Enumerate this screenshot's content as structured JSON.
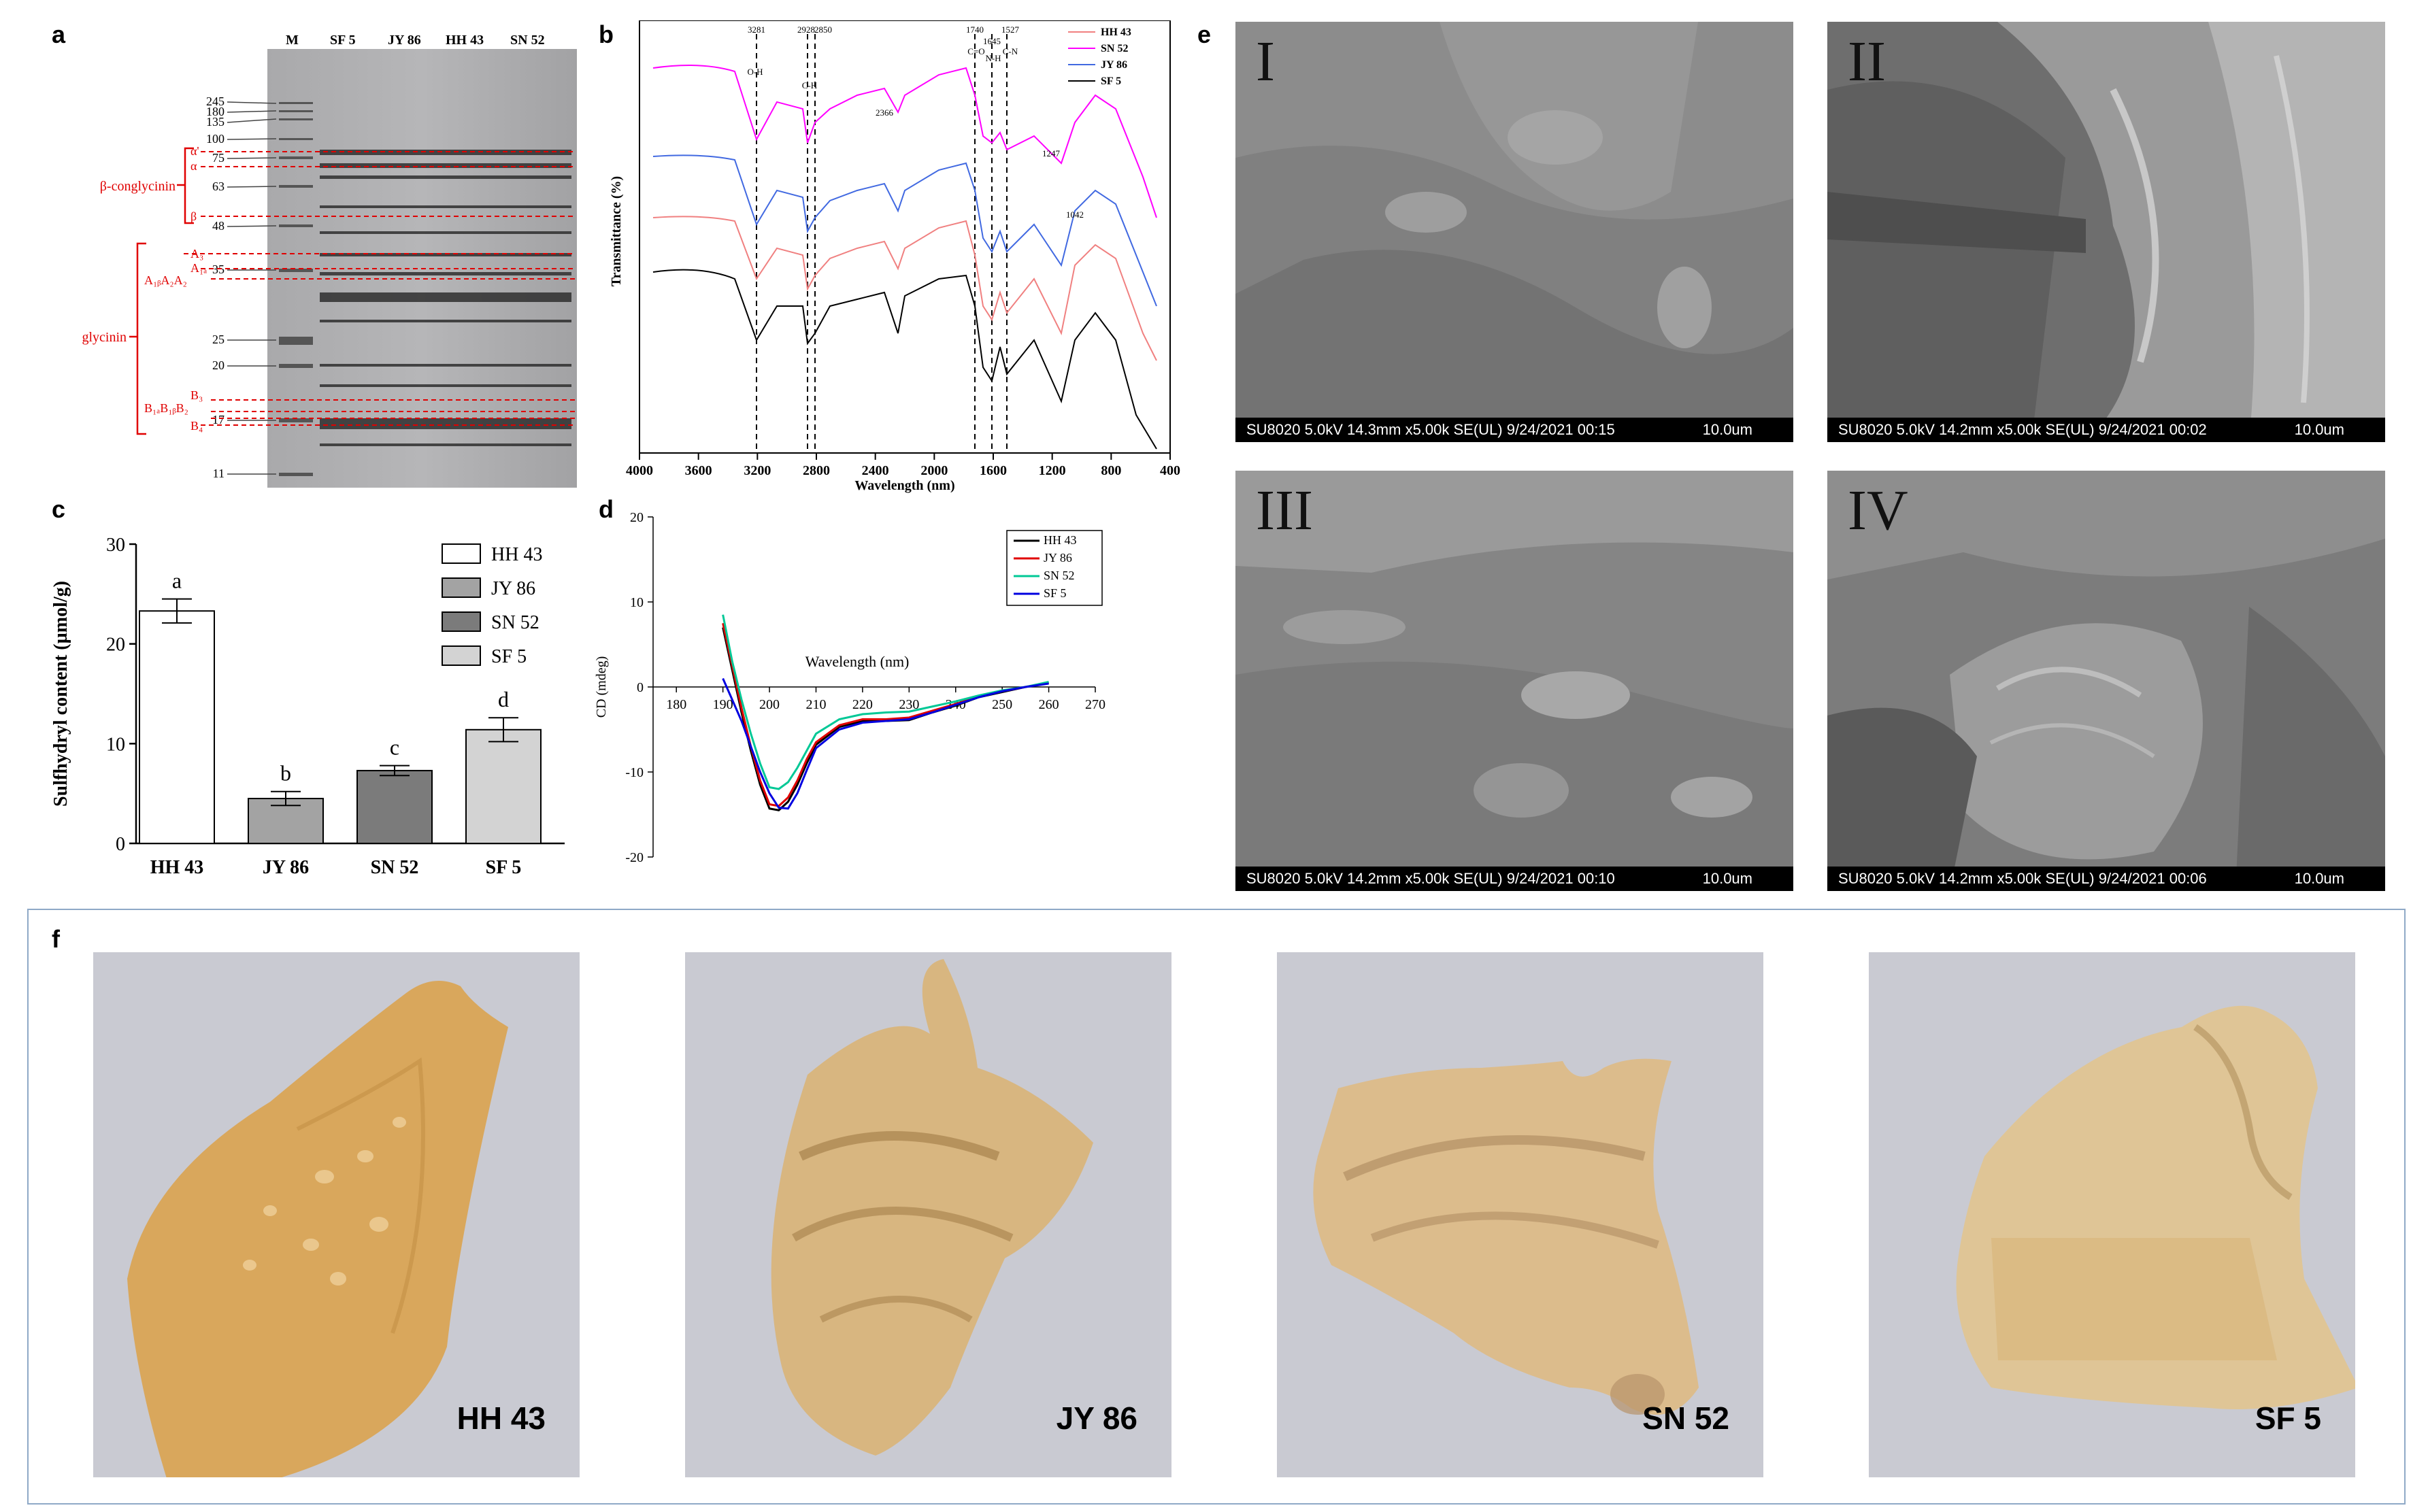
{
  "panels": {
    "a": "a",
    "b": "b",
    "c": "c",
    "d": "d",
    "e": "e",
    "f": "f"
  },
  "panel_a": {
    "lane_labels": [
      "M",
      "SF 5",
      "JY 86",
      "HH 43",
      "SN 52"
    ],
    "marker_labels": [
      "245",
      "180",
      "135",
      "100",
      "75",
      "63",
      "48",
      "35",
      "25",
      "20",
      "17",
      "11"
    ],
    "band_labels": [
      "α'",
      "α",
      "β",
      "A₃",
      "A₁ₐ",
      "A₁ᵦA₂A₂",
      "B₃",
      "B₁ₐB₁ᵦB₂",
      "B₄"
    ],
    "group_labels": [
      "β-conglycinin",
      "glycinin"
    ]
  },
  "panel_b": {
    "ylabel": "Transmittance (%)",
    "xlabel": "Wavelength (nm)",
    "x_ticks": [
      "4000",
      "3600",
      "3200",
      "2800",
      "2400",
      "2000",
      "1600",
      "1200",
      "800",
      "400"
    ],
    "peak_labels": [
      "3281",
      "2928",
      "2850",
      "1740",
      "1527",
      "2366",
      "1247",
      "1042",
      "1645"
    ],
    "bond_labels": [
      "O-H",
      "C-H",
      "C=O",
      "C-N",
      "N-H"
    ],
    "legend": [
      {
        "name": "HH 43",
        "color": "#f08080"
      },
      {
        "name": "SN 52",
        "color": "#ff00ff"
      },
      {
        "name": "JY 86",
        "color": "#4169e1"
      },
      {
        "name": "SF 5",
        "color": "#000000"
      }
    ]
  },
  "chart_data": [
    {
      "type": "bar",
      "panel": "c",
      "categories": [
        "HH 43",
        "JY 86",
        "SN 52",
        "SF 5"
      ],
      "values": [
        23.3,
        4.5,
        7.3,
        11.4
      ],
      "errors": [
        1.2,
        0.7,
        0.5,
        1.2
      ],
      "significance": [
        "a",
        "b",
        "c",
        "d"
      ],
      "colors": [
        "#ffffff",
        "#a3a3a3",
        "#7b7b7b",
        "#d3d3d3"
      ],
      "ylabel": "Sulfhydryl content (µmol/g)",
      "ylim": [
        0,
        30
      ],
      "y_ticks": [
        "0",
        "10",
        "20",
        "30"
      ],
      "legend": [
        "HH 43",
        "JY 86",
        "SN 52",
        "SF 5"
      ]
    },
    {
      "type": "line",
      "panel": "d",
      "xlabel": "Wavelength (nm)",
      "ylabel": "CD (mdeg)",
      "xlim": [
        175,
        270
      ],
      "ylim": [
        -20,
        20
      ],
      "x_ticks": [
        "180",
        "190",
        "200",
        "210",
        "220",
        "230",
        "240",
        "250",
        "260",
        "270"
      ],
      "y_ticks": [
        "20",
        "10",
        "0",
        "-10",
        "-20"
      ],
      "series": [
        {
          "name": "HH 43",
          "color": "#000000",
          "x": [
            190,
            192,
            194,
            196,
            198,
            200,
            202,
            204,
            206,
            208,
            210,
            215,
            220,
            225,
            230,
            235,
            240,
            245,
            250,
            255,
            260
          ],
          "y": [
            7,
            2,
            -3,
            -7.5,
            -11.5,
            -14.3,
            -14.5,
            -13.5,
            -11.5,
            -9,
            -6.8,
            -4.7,
            -4,
            -4,
            -3.9,
            -3,
            -2.2,
            -1.2,
            -0.6,
            0,
            0.5
          ]
        },
        {
          "name": "JY 86",
          "color": "#e00000",
          "x": [
            190,
            192,
            194,
            196,
            198,
            200,
            202,
            204,
            206,
            208,
            210,
            215,
            220,
            225,
            230,
            235,
            240,
            245,
            250,
            255,
            260
          ],
          "y": [
            7.5,
            2.5,
            -2.5,
            -7,
            -11,
            -13.8,
            -14,
            -13,
            -11,
            -8.5,
            -6.5,
            -4.5,
            -3.8,
            -3.8,
            -3.6,
            -2.8,
            -2,
            -1.1,
            -0.5,
            0,
            0.5
          ]
        },
        {
          "name": "SN 52",
          "color": "#00c896",
          "x": [
            190,
            192,
            194,
            196,
            198,
            200,
            202,
            204,
            206,
            208,
            210,
            215,
            220,
            225,
            230,
            235,
            240,
            245,
            250,
            255,
            260
          ],
          "y": [
            8.5,
            3,
            -1.5,
            -5.5,
            -9,
            -11.8,
            -12,
            -11.2,
            -9.5,
            -7.5,
            -5.5,
            -3.8,
            -3.2,
            -3,
            -2.9,
            -2.3,
            -1.7,
            -1,
            -0.4,
            0,
            0.6
          ]
        },
        {
          "name": "SF 5",
          "color": "#0000e0",
          "x": [
            190,
            192,
            194,
            196,
            198,
            200,
            202,
            204,
            206,
            208,
            210,
            215,
            220,
            225,
            230,
            235,
            240,
            245,
            250,
            255,
            260
          ],
          "y": [
            1,
            -1.5,
            -4,
            -7,
            -10,
            -12.5,
            -14.2,
            -14.3,
            -12.5,
            -9.8,
            -7.2,
            -5,
            -4.2,
            -4,
            -3.8,
            -3,
            -2.1,
            -1.2,
            -0.5,
            0,
            0.4
          ]
        }
      ]
    }
  ],
  "panel_e": {
    "images": [
      {
        "numeral": "I",
        "info": "SU8020 5.0kV 14.3mm x5.00k SE(UL) 9/24/2021 00:15",
        "scale": "10.0um"
      },
      {
        "numeral": "II",
        "info": "SU8020 5.0kV 14.2mm x5.00k SE(UL) 9/24/2021 00:02",
        "scale": "10.0um"
      },
      {
        "numeral": "III",
        "info": "SU8020 5.0kV 14.2mm x5.00k SE(UL) 9/24/2021 00:10",
        "scale": "10.0um"
      },
      {
        "numeral": "IV",
        "info": "SU8020 5.0kV 14.2mm x5.00k SE(UL) 9/24/2021 00:06",
        "scale": "10.0um"
      }
    ]
  },
  "panel_f": {
    "photos": [
      "HH 43",
      "JY 86",
      "SN 52",
      "SF 5"
    ]
  }
}
